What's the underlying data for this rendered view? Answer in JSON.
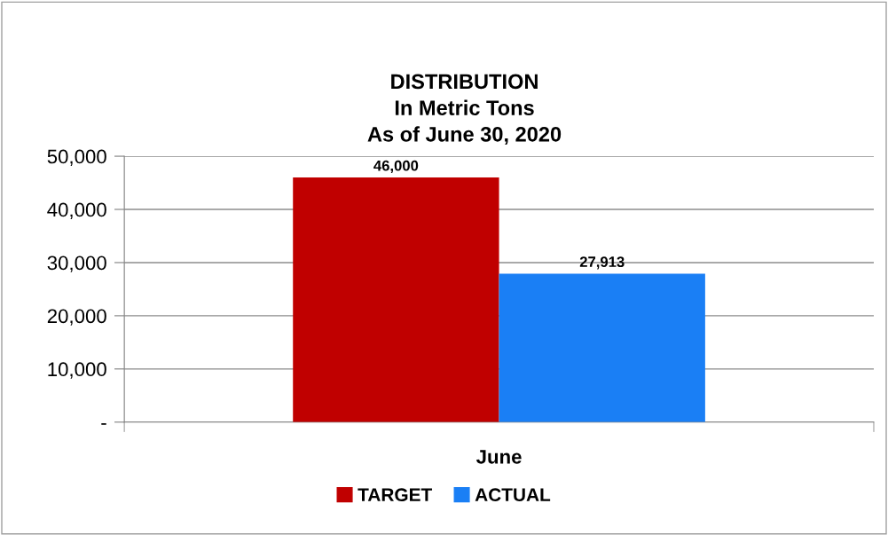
{
  "chart_data": {
    "type": "bar",
    "title": "DISTRIBUTION\nIn Metric Tons\nAs of June 30, 2020",
    "categories": [
      "June"
    ],
    "series": [
      {
        "name": "TARGET",
        "color": "#c00000",
        "values": [
          46000
        ],
        "value_labels": [
          "46,000"
        ]
      },
      {
        "name": "ACTUAL",
        "color": "#1a7ff5",
        "values": [
          27913
        ],
        "value_labels": [
          "27,913"
        ]
      }
    ],
    "ylim": [
      0,
      50000
    ],
    "yticks": [
      {
        "value": 0,
        "label": "-"
      },
      {
        "value": 10000,
        "label": "10,000"
      },
      {
        "value": 20000,
        "label": "20,000"
      },
      {
        "value": 30000,
        "label": "30,000"
      },
      {
        "value": 40000,
        "label": "40,000"
      },
      {
        "value": 50000,
        "label": "50,000"
      }
    ],
    "grid": "y",
    "legend": "bottom"
  }
}
